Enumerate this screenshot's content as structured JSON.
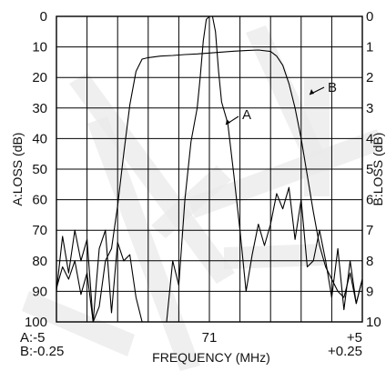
{
  "chart_data": {
    "type": "line",
    "x_unit": "MHz",
    "xlabel": "FREQUENCY (MHz)",
    "ylabel_left": "A:LOSS (dB)",
    "ylabel_right": "B:LOSS (dB)",
    "xlim_A": [
      -5,
      5
    ],
    "xlim_B": [
      -0.25,
      0.25
    ],
    "ylim_left": [
      0,
      100
    ],
    "ylim_right": [
      0,
      10
    ],
    "left_ticks": [
      "0",
      "10",
      "20",
      "30",
      "40",
      "50",
      "60",
      "70",
      "80",
      "90",
      "100"
    ],
    "right_ticks": [
      "0",
      "1",
      "2",
      "3",
      "4",
      "5",
      "6",
      "7",
      "8",
      "9",
      "10"
    ],
    "x_ticks": {
      "left_a": "A:-5",
      "left_b": "B:-0.25",
      "center": "71",
      "right_a": "+5",
      "right_b": "+0.25"
    },
    "grid": true,
    "series": [
      {
        "name": "A",
        "x": [
          -5,
          -4.8,
          -4.6,
          -4.4,
          -4.2,
          -4,
          -3.8,
          -3.6,
          -3.4,
          -3.2,
          -3,
          -2.8,
          -2.6,
          -2.4,
          -2.2,
          -2,
          -1.8,
          -1.6,
          -1.4,
          -1.2,
          -1,
          -0.8,
          -0.6,
          -0.4,
          -0.3,
          -0.2,
          -0.1,
          0,
          0.1,
          0.2,
          0.3,
          0.4,
          0.6,
          0.8,
          1,
          1.2,
          1.4,
          1.6,
          1.8,
          2,
          2.2,
          2.4,
          2.6,
          2.8,
          3,
          3.2,
          3.4,
          3.6,
          3.8,
          4,
          4.2,
          4.4,
          4.6,
          4.8,
          5
        ],
        "y": [
          90,
          72,
          84,
          70,
          80,
          73,
          100,
          76,
          70,
          97,
          74,
          80,
          78,
          92,
          100,
          100,
          100,
          100,
          100,
          80,
          88,
          60,
          41,
          30,
          20,
          8,
          1,
          0,
          0,
          5,
          18,
          28,
          35,
          52,
          70,
          90,
          78,
          68,
          75,
          68,
          58,
          63,
          56,
          73,
          60,
          82,
          80,
          70,
          80,
          92,
          76,
          96,
          80,
          94,
          86
        ]
      },
      {
        "name": "B",
        "x": [
          -0.25,
          -0.24,
          -0.23,
          -0.22,
          -0.21,
          -0.2,
          -0.19,
          -0.18,
          -0.17,
          -0.16,
          -0.15,
          -0.14,
          -0.13,
          -0.12,
          -0.11,
          -0.1,
          -0.08,
          -0.06,
          -0.04,
          -0.02,
          0,
          0.02,
          0.04,
          0.06,
          0.08,
          0.1,
          0.11,
          0.12,
          0.13,
          0.14,
          0.15,
          0.16,
          0.17,
          0.18,
          0.19,
          0.2,
          0.21,
          0.22,
          0.23,
          0.24,
          0.25
        ],
        "y": [
          8.9,
          8.2,
          8.6,
          8,
          9.1,
          8.4,
          10,
          9.5,
          8,
          7.6,
          6.2,
          4.5,
          2.9,
          1.8,
          1.4,
          1.35,
          1.3,
          1.28,
          1.25,
          1.23,
          1.2,
          1.17,
          1.14,
          1.12,
          1.1,
          1.15,
          1.3,
          1.6,
          2.2,
          3,
          4,
          5.2,
          6.4,
          7.5,
          8.2,
          8.6,
          9,
          9.2,
          8.4,
          9.4,
          8.6
        ]
      }
    ],
    "annotations": [
      {
        "text": "A",
        "target_series": "A"
      },
      {
        "text": "B",
        "target_series": "B"
      }
    ]
  }
}
